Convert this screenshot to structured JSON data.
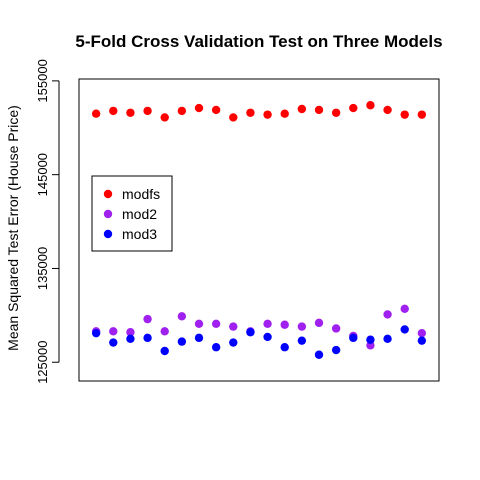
{
  "chart_data": {
    "type": "scatter",
    "title": "5-Fold Cross Validation Test on Three Models",
    "ylabel": "Mean Squared Test Error (House Price)",
    "xlabel": "",
    "ylim": [
      123000,
      155200
    ],
    "xlim": [
      0.0,
      21.0
    ],
    "yticks": [
      125000,
      135000,
      145000,
      155000
    ],
    "ytick_labels": [
      "125000",
      "135000",
      "145000",
      "155000"
    ],
    "grid": false,
    "legend_position": "left, mid-height",
    "x": [
      1,
      2,
      3,
      4,
      5,
      6,
      7,
      8,
      9,
      10,
      11,
      12,
      13,
      14,
      15,
      16,
      17,
      18,
      19,
      20
    ],
    "series": [
      {
        "name": "modfs",
        "color": "#ff0000",
        "values": [
          151500,
          151800,
          151600,
          151800,
          151100,
          151800,
          152100,
          151900,
          151100,
          151600,
          151400,
          151500,
          152000,
          151900,
          151600,
          152100,
          152400,
          151900,
          151400,
          151400
        ]
      },
      {
        "name": "mod2",
        "color": "#a020f0",
        "values": [
          128300,
          128300,
          128200,
          129600,
          128300,
          129900,
          129100,
          129100,
          128800,
          128300,
          129100,
          129000,
          128800,
          129200,
          128600,
          127800,
          126800,
          130100,
          130700,
          128100
        ]
      },
      {
        "name": "mod3",
        "color": "#0000ff",
        "values": [
          128100,
          127100,
          127500,
          127600,
          126200,
          127200,
          127600,
          126600,
          127100,
          128200,
          127700,
          126600,
          127300,
          125800,
          126300,
          127600,
          127400,
          127500,
          128500,
          127300
        ]
      }
    ]
  }
}
